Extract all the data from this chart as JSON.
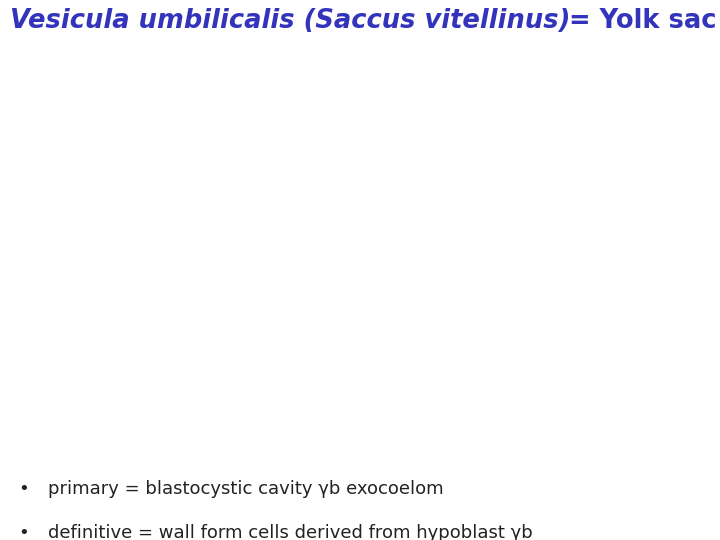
{
  "title_italic": "Vesicula umbilicalis (Saccus vitellinus)",
  "title_normal": " = Yolk sac",
  "title_color": "#3333bb",
  "background_color": "#ffffff",
  "figsize": [
    7.2,
    5.4
  ],
  "dpi": 100,
  "text_color": "#222222",
  "red_color": "#cc0000",
  "blue_color": "#2222aa",
  "teal_color": "#3399cc",
  "arrow": "γₒ",
  "fontsize_title": 18.5,
  "fontsize_body": 13.0
}
